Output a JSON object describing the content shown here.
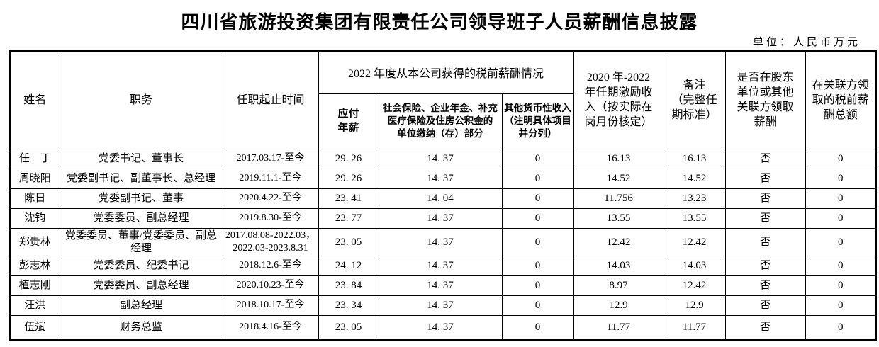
{
  "page": {
    "title": "四川省旅游投资集团有限责任公司领导班子人员薪酬信息披露",
    "unit_label": "单位：人民币万元"
  },
  "table": {
    "headers": {
      "name": "姓名",
      "position": "职务",
      "term": "任职起止时间",
      "salary_2022_group": "2022 年度从本公司获得的税前薪酬情况",
      "payable_salary": "应付\n年薪",
      "social_insurance": "社会保险、企业年金、补充\n医疗保险及住房公积金的\n单位缴纳（存）部分",
      "other_income": "其他货币性收入\n（注明具体项目\n并分列）",
      "incentive": "2020 年-2022\n年任期激励收\n入（按实际在\n岗月份核定）",
      "remark": "备注\n（完整任\n期标准）",
      "related_party_flag": "是否在股东\n单位或其他\n关联方领取\n薪酬",
      "related_party_amount": "在关联方领\n取的税前薪\n酬总额"
    },
    "field_order": [
      "name",
      "position",
      "term",
      "payable",
      "social",
      "other",
      "incentive",
      "remark",
      "flag",
      "amount"
    ],
    "rows": [
      {
        "name": "任　丁",
        "position": "党委书记、董事长",
        "term": "2017.03.17-至今",
        "payable": "29. 26",
        "social": "14. 37",
        "other": "0",
        "incentive": "16.13",
        "remark": "16.13",
        "flag": "否",
        "amount": "0"
      },
      {
        "name": "周晓阳",
        "position": "党委副书记、副董事长、总经理",
        "term": "2019.11.1-至今",
        "payable": "29. 26",
        "social": "14. 37",
        "other": "0",
        "incentive": "14.52",
        "remark": "14.52",
        "flag": "否",
        "amount": "0"
      },
      {
        "name": "陈日",
        "position": "党委副书记、董事",
        "term": "2020.4.22-至今",
        "payable": "23. 41",
        "social": "14. 04",
        "other": "0",
        "incentive": "11.756",
        "remark": "13.23",
        "flag": "否",
        "amount": "0"
      },
      {
        "name": "沈钧",
        "position": "党委委员、副总经理",
        "term": "2019.8.30-至今",
        "payable": "23. 77",
        "social": "14. 37",
        "other": "0",
        "incentive": "13.55",
        "remark": "13.55",
        "flag": "否",
        "amount": "0"
      },
      {
        "name": "郑贵林",
        "position": "党委委员、董事/党委委员、副总\n经理",
        "term": "2017.08.08-2022.03，\n2022.03-2023.8.31",
        "payable": "23. 05",
        "social": "14. 37",
        "other": "0",
        "incentive": "12.42",
        "remark": "12.42",
        "flag": "否",
        "amount": "0"
      },
      {
        "name": "彭志林",
        "position": "党委委员、纪委书记",
        "term": "2018.12.6-至今",
        "payable": "24. 12",
        "social": "14. 37",
        "other": "0",
        "incentive": "14.03",
        "remark": "14.03",
        "flag": "否",
        "amount": "0"
      },
      {
        "name": "植志刚",
        "position": "党委委员、副总经理",
        "term": "2020.10.23-至今",
        "payable": "23. 84",
        "social": "14. 37",
        "other": "0",
        "incentive": "8.97",
        "remark": "12.42",
        "flag": "否",
        "amount": "0"
      },
      {
        "name": "汪洪",
        "position": "副总经理",
        "term": "2018.10.17-至今",
        "payable": "23. 34",
        "social": "14. 37",
        "other": "0",
        "incentive": "12.9",
        "remark": "12.9",
        "flag": "否",
        "amount": "0"
      },
      {
        "name": "伍斌",
        "position": "财务总监",
        "term": "2018.4.16-至今",
        "payable": "23. 05",
        "social": "14. 37",
        "other": "0",
        "incentive": "11.77",
        "remark": "11.77",
        "flag": "否",
        "amount": "0"
      }
    ]
  }
}
